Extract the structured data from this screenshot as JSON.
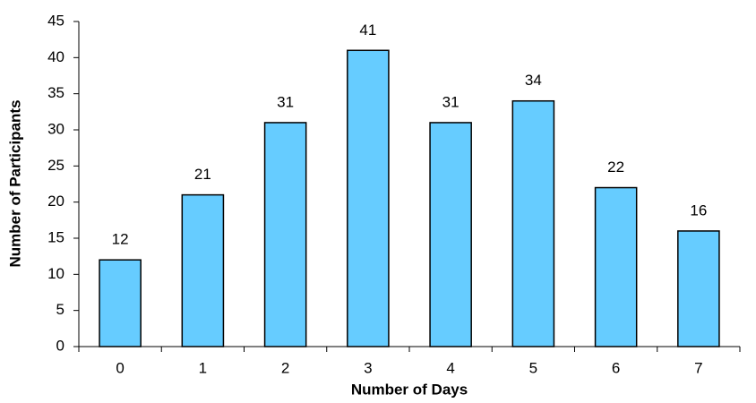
{
  "chart_data": {
    "type": "bar",
    "x_label": "Number of Days",
    "y_label": "Number of Participants",
    "categories": [
      "0",
      "1",
      "2",
      "3",
      "4",
      "5",
      "6",
      "7"
    ],
    "values": [
      12,
      21,
      31,
      41,
      31,
      34,
      22,
      16
    ],
    "color": "#66ccff",
    "ylim": [
      0,
      45
    ],
    "yticks": [
      0,
      5,
      10,
      15,
      20,
      25,
      30,
      35,
      40,
      45
    ],
    "grid": false
  }
}
